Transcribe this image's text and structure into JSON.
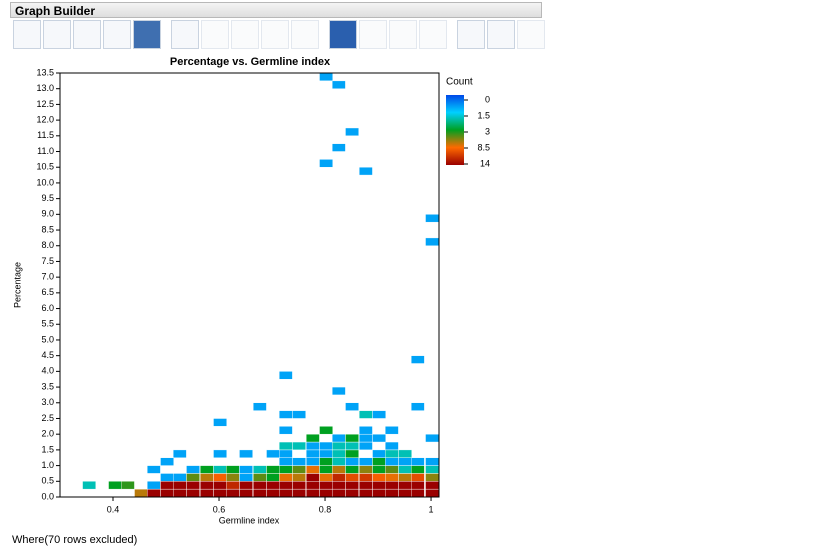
{
  "header": {
    "title": "Graph Builder"
  },
  "chart_data": {
    "type": "heatmap",
    "title": "Percentage vs. Germline index",
    "x_label": "Germline index",
    "y_label": "Percentage",
    "xlim": [
      0.3,
      1.015
    ],
    "xticks": [
      0.4,
      0.6,
      0.8,
      1
    ],
    "ylim": [
      0,
      13.5
    ],
    "yticks": [
      {
        "value": 0,
        "label": "0.0"
      },
      0.5,
      {
        "value": 1,
        "label": "1.0"
      },
      1.5,
      {
        "value": 2,
        "label": "2.0"
      },
      2.5,
      {
        "value": 3,
        "label": "3.0"
      },
      3.5,
      {
        "value": 4,
        "label": "4.0"
      },
      4.5,
      {
        "value": 5,
        "label": "5.0"
      },
      5.5,
      {
        "value": 6,
        "label": "6.0"
      },
      6.5,
      {
        "value": 7,
        "label": "7.0"
      },
      7.5,
      {
        "value": 8,
        "label": "8.0"
      },
      8.5,
      {
        "value": 9,
        "label": "9.0"
      },
      9.5,
      {
        "value": 10,
        "label": "10.0"
      },
      10.5,
      {
        "value": 11,
        "label": "11.0"
      },
      11.5,
      {
        "value": 12,
        "label": "12.0"
      },
      12.5,
      {
        "value": 13,
        "label": "13.0"
      },
      13.5
    ],
    "colorbar": {
      "title": "Count",
      "ticks": [
        0,
        1.5,
        3,
        8.5,
        14
      ],
      "colors": [
        "#0048e8",
        "#00d0ff",
        "#00a020",
        "#ff6a00",
        "#9a0000"
      ]
    },
    "cells": [
      {
        "x": 0.355,
        "y": 0.375,
        "count": 2
      },
      {
        "x": 0.404,
        "y": 0.375,
        "count": 3
      },
      {
        "x": 0.428,
        "y": 0.375,
        "count": 4
      },
      {
        "x": 0.453,
        "y": 0.125,
        "count": 7
      },
      {
        "x": 0.477,
        "y": 0.125,
        "count": 14
      },
      {
        "x": 0.502,
        "y": 0.125,
        "count": 14
      },
      {
        "x": 0.526,
        "y": 0.125,
        "count": 14
      },
      {
        "x": 0.551,
        "y": 0.125,
        "count": 14
      },
      {
        "x": 0.577,
        "y": 0.125,
        "count": 14
      },
      {
        "x": 0.602,
        "y": 0.125,
        "count": 14
      },
      {
        "x": 0.626,
        "y": 0.125,
        "count": 14
      },
      {
        "x": 0.651,
        "y": 0.125,
        "count": 14
      },
      {
        "x": 0.677,
        "y": 0.125,
        "count": 14
      },
      {
        "x": 0.702,
        "y": 0.125,
        "count": 14
      },
      {
        "x": 0.726,
        "y": 0.125,
        "count": 14
      },
      {
        "x": 0.751,
        "y": 0.125,
        "count": 14
      },
      {
        "x": 0.777,
        "y": 0.125,
        "count": 14
      },
      {
        "x": 0.802,
        "y": 0.125,
        "count": 14
      },
      {
        "x": 0.826,
        "y": 0.125,
        "count": 14
      },
      {
        "x": 0.851,
        "y": 0.125,
        "count": 14
      },
      {
        "x": 0.877,
        "y": 0.125,
        "count": 14
      },
      {
        "x": 0.902,
        "y": 0.125,
        "count": 14
      },
      {
        "x": 0.926,
        "y": 0.125,
        "count": 14
      },
      {
        "x": 0.951,
        "y": 0.125,
        "count": 14
      },
      {
        "x": 0.975,
        "y": 0.125,
        "count": 14
      },
      {
        "x": 1.002,
        "y": 0.125,
        "count": 14
      },
      {
        "x": 0.477,
        "y": 0.375,
        "count": 1
      },
      {
        "x": 0.502,
        "y": 0.375,
        "count": 14
      },
      {
        "x": 0.526,
        "y": 0.375,
        "count": 14
      },
      {
        "x": 0.551,
        "y": 0.375,
        "count": 14
      },
      {
        "x": 0.577,
        "y": 0.375,
        "count": 14
      },
      {
        "x": 0.602,
        "y": 0.375,
        "count": 14
      },
      {
        "x": 0.626,
        "y": 0.375,
        "count": 12
      },
      {
        "x": 0.651,
        "y": 0.375,
        "count": 14
      },
      {
        "x": 0.677,
        "y": 0.375,
        "count": 14
      },
      {
        "x": 0.702,
        "y": 0.375,
        "count": 14
      },
      {
        "x": 0.726,
        "y": 0.375,
        "count": 14
      },
      {
        "x": 0.751,
        "y": 0.375,
        "count": 14
      },
      {
        "x": 0.777,
        "y": 0.375,
        "count": 14
      },
      {
        "x": 0.802,
        "y": 0.375,
        "count": 14
      },
      {
        "x": 0.826,
        "y": 0.375,
        "count": 14
      },
      {
        "x": 0.851,
        "y": 0.375,
        "count": 14
      },
      {
        "x": 0.877,
        "y": 0.375,
        "count": 14
      },
      {
        "x": 0.902,
        "y": 0.375,
        "count": 14
      },
      {
        "x": 0.926,
        "y": 0.375,
        "count": 14
      },
      {
        "x": 0.951,
        "y": 0.375,
        "count": 14
      },
      {
        "x": 0.975,
        "y": 0.375,
        "count": 14
      },
      {
        "x": 1.002,
        "y": 0.375,
        "count": 14
      },
      {
        "x": 0.502,
        "y": 0.625,
        "count": 1
      },
      {
        "x": 0.526,
        "y": 0.625,
        "count": 1
      },
      {
        "x": 0.551,
        "y": 0.625,
        "count": 5
      },
      {
        "x": 0.577,
        "y": 0.625,
        "count": 7
      },
      {
        "x": 0.602,
        "y": 0.625,
        "count": 9
      },
      {
        "x": 0.626,
        "y": 0.625,
        "count": 6
      },
      {
        "x": 0.651,
        "y": 0.625,
        "count": 1
      },
      {
        "x": 0.677,
        "y": 0.625,
        "count": 5
      },
      {
        "x": 0.702,
        "y": 0.625,
        "count": 3
      },
      {
        "x": 0.726,
        "y": 0.625,
        "count": 8
      },
      {
        "x": 0.751,
        "y": 0.625,
        "count": 7
      },
      {
        "x": 0.777,
        "y": 0.625,
        "count": 14
      },
      {
        "x": 0.802,
        "y": 0.625,
        "count": 8
      },
      {
        "x": 0.826,
        "y": 0.625,
        "count": 12
      },
      {
        "x": 0.851,
        "y": 0.625,
        "count": 10
      },
      {
        "x": 0.877,
        "y": 0.625,
        "count": 11
      },
      {
        "x": 0.902,
        "y": 0.625,
        "count": 9
      },
      {
        "x": 0.926,
        "y": 0.625,
        "count": 8
      },
      {
        "x": 0.951,
        "y": 0.625,
        "count": 7
      },
      {
        "x": 0.975,
        "y": 0.625,
        "count": 10
      },
      {
        "x": 1.002,
        "y": 0.625,
        "count": 6
      },
      {
        "x": 0.477,
        "y": 0.875,
        "count": 1
      },
      {
        "x": 0.551,
        "y": 0.875,
        "count": 1
      },
      {
        "x": 0.577,
        "y": 0.875,
        "count": 3
      },
      {
        "x": 0.602,
        "y": 0.875,
        "count": 2
      },
      {
        "x": 0.626,
        "y": 0.875,
        "count": 3
      },
      {
        "x": 0.651,
        "y": 0.875,
        "count": 1
      },
      {
        "x": 0.677,
        "y": 0.875,
        "count": 2
      },
      {
        "x": 0.702,
        "y": 0.875,
        "count": 3
      },
      {
        "x": 0.726,
        "y": 0.875,
        "count": 3
      },
      {
        "x": 0.751,
        "y": 0.875,
        "count": 5
      },
      {
        "x": 0.777,
        "y": 0.875,
        "count": 8
      },
      {
        "x": 0.802,
        "y": 0.875,
        "count": 3
      },
      {
        "x": 0.826,
        "y": 0.875,
        "count": 7
      },
      {
        "x": 0.851,
        "y": 0.875,
        "count": 3
      },
      {
        "x": 0.877,
        "y": 0.875,
        "count": 6
      },
      {
        "x": 0.902,
        "y": 0.875,
        "count": 3
      },
      {
        "x": 0.926,
        "y": 0.875,
        "count": 5
      },
      {
        "x": 0.951,
        "y": 0.875,
        "count": 2
      },
      {
        "x": 0.975,
        "y": 0.875,
        "count": 3
      },
      {
        "x": 1.002,
        "y": 0.875,
        "count": 2
      },
      {
        "x": 0.502,
        "y": 1.125,
        "count": 1
      },
      {
        "x": 0.726,
        "y": 1.125,
        "count": 1
      },
      {
        "x": 0.751,
        "y": 1.125,
        "count": 1
      },
      {
        "x": 0.777,
        "y": 1.125,
        "count": 1
      },
      {
        "x": 0.802,
        "y": 1.125,
        "count": 3
      },
      {
        "x": 0.826,
        "y": 1.125,
        "count": 2
      },
      {
        "x": 0.851,
        "y": 1.125,
        "count": 1
      },
      {
        "x": 0.877,
        "y": 1.125,
        "count": 1
      },
      {
        "x": 0.902,
        "y": 1.125,
        "count": 3
      },
      {
        "x": 0.926,
        "y": 1.125,
        "count": 1
      },
      {
        "x": 0.951,
        "y": 1.125,
        "count": 1
      },
      {
        "x": 0.975,
        "y": 1.125,
        "count": 1
      },
      {
        "x": 1.002,
        "y": 1.125,
        "count": 1
      },
      {
        "x": 0.526,
        "y": 1.375,
        "count": 1
      },
      {
        "x": 0.602,
        "y": 1.375,
        "count": 1
      },
      {
        "x": 0.651,
        "y": 1.375,
        "count": 1
      },
      {
        "x": 0.702,
        "y": 1.375,
        "count": 1
      },
      {
        "x": 0.726,
        "y": 1.375,
        "count": 1
      },
      {
        "x": 0.777,
        "y": 1.375,
        "count": 1
      },
      {
        "x": 0.802,
        "y": 1.375,
        "count": 1
      },
      {
        "x": 0.826,
        "y": 1.375,
        "count": 2
      },
      {
        "x": 0.851,
        "y": 1.375,
        "count": 3
      },
      {
        "x": 0.902,
        "y": 1.375,
        "count": 1
      },
      {
        "x": 0.926,
        "y": 1.375,
        "count": 2
      },
      {
        "x": 0.951,
        "y": 1.375,
        "count": 2
      },
      {
        "x": 0.726,
        "y": 1.625,
        "count": 2
      },
      {
        "x": 0.751,
        "y": 1.625,
        "count": 2
      },
      {
        "x": 0.777,
        "y": 1.625,
        "count": 1
      },
      {
        "x": 0.802,
        "y": 1.625,
        "count": 1
      },
      {
        "x": 0.826,
        "y": 1.625,
        "count": 2
      },
      {
        "x": 0.851,
        "y": 1.625,
        "count": 2
      },
      {
        "x": 0.877,
        "y": 1.625,
        "count": 1
      },
      {
        "x": 0.926,
        "y": 1.625,
        "count": 1
      },
      {
        "x": 0.777,
        "y": 1.875,
        "count": 3
      },
      {
        "x": 0.826,
        "y": 1.875,
        "count": 1
      },
      {
        "x": 0.851,
        "y": 1.875,
        "count": 3
      },
      {
        "x": 0.877,
        "y": 1.875,
        "count": 1
      },
      {
        "x": 0.902,
        "y": 1.875,
        "count": 1
      },
      {
        "x": 1.002,
        "y": 1.875,
        "count": 1
      },
      {
        "x": 0.726,
        "y": 2.125,
        "count": 1
      },
      {
        "x": 0.802,
        "y": 2.125,
        "count": 3
      },
      {
        "x": 0.877,
        "y": 2.125,
        "count": 1
      },
      {
        "x": 0.926,
        "y": 2.125,
        "count": 1
      },
      {
        "x": 0.602,
        "y": 2.375,
        "count": 1
      },
      {
        "x": 0.726,
        "y": 2.625,
        "count": 1
      },
      {
        "x": 0.751,
        "y": 2.625,
        "count": 1
      },
      {
        "x": 0.877,
        "y": 2.625,
        "count": 2
      },
      {
        "x": 0.902,
        "y": 2.625,
        "count": 1
      },
      {
        "x": 0.677,
        "y": 2.875,
        "count": 1
      },
      {
        "x": 0.851,
        "y": 2.875,
        "count": 1
      },
      {
        "x": 0.975,
        "y": 2.875,
        "count": 1
      },
      {
        "x": 0.826,
        "y": 3.375,
        "count": 1
      },
      {
        "x": 0.726,
        "y": 3.875,
        "count": 1
      },
      {
        "x": 0.975,
        "y": 4.375,
        "count": 1
      },
      {
        "x": 1.002,
        "y": 8.125,
        "count": 1
      },
      {
        "x": 1.002,
        "y": 8.875,
        "count": 1
      },
      {
        "x": 0.877,
        "y": 10.375,
        "count": 1
      },
      {
        "x": 0.802,
        "y": 10.625,
        "count": 1
      },
      {
        "x": 0.826,
        "y": 11.125,
        "count": 1
      },
      {
        "x": 0.851,
        "y": 11.625,
        "count": 1
      },
      {
        "x": 0.826,
        "y": 13.125,
        "count": 1
      },
      {
        "x": 0.802,
        "y": 13.375,
        "count": 1
      }
    ]
  },
  "footer": {
    "text": "Where(70 rows excluded)"
  }
}
